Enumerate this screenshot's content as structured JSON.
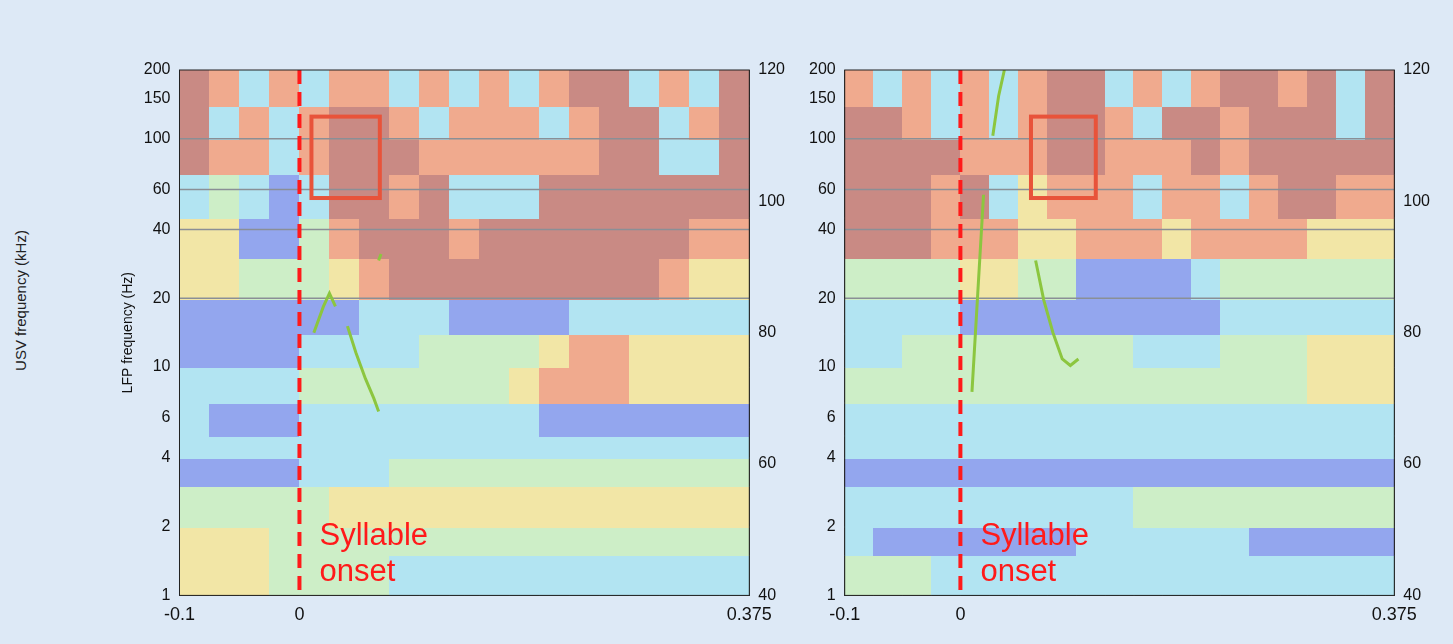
{
  "side_text": "USV frequency (kHz)",
  "chart_data": [
    {
      "type": "heatmap",
      "ylabel": "LFP frequency (Hz)",
      "xlim": [
        -0.1,
        0.375
      ],
      "xticks": [
        -0.1,
        0,
        0.375
      ],
      "ylim": [
        1,
        200
      ],
      "yticks": [
        1,
        2,
        4,
        6,
        10,
        20,
        40,
        60,
        100,
        150,
        200
      ],
      "log": "y",
      "y2lim": [
        40,
        120
      ],
      "y2ticks": [
        40,
        60,
        80,
        100,
        120
      ],
      "grid": false,
      "cells": {
        "x_edges": [
          -0.1,
          -0.075,
          -0.05,
          -0.025,
          0,
          0.025,
          0.05,
          0.075,
          0.1,
          0.125,
          0.15,
          0.175,
          0.2,
          0.225,
          0.25,
          0.275,
          0.3,
          0.325,
          0.35,
          0.375
        ],
        "y_edges": [
          1,
          1.5,
          2,
          3,
          4,
          5,
          7,
          10,
          14,
          20,
          30,
          45,
          70,
          100,
          140,
          200
        ],
        "zlim": [
          0,
          5
        ],
        "values": [
          [
            3,
            3,
            3,
            2,
            2,
            2,
            2,
            1,
            1,
            1,
            1,
            1,
            1,
            1,
            1,
            1,
            1,
            1,
            1
          ],
          [
            3,
            3,
            3,
            2,
            2,
            2,
            2,
            2,
            2,
            2,
            2,
            2,
            2,
            2,
            2,
            2,
            2,
            2,
            2
          ],
          [
            2,
            2,
            2,
            2,
            2,
            3,
            3,
            3,
            3,
            3,
            3,
            3,
            3,
            3,
            3,
            3,
            3,
            3,
            3
          ],
          [
            0,
            0,
            0,
            0,
            1,
            1,
            1,
            2,
            2,
            2,
            2,
            2,
            2,
            2,
            2,
            2,
            2,
            2,
            2
          ],
          [
            1,
            1,
            1,
            1,
            1,
            1,
            1,
            1,
            1,
            1,
            1,
            1,
            1,
            1,
            1,
            1,
            1,
            1,
            1
          ],
          [
            1,
            0,
            0,
            0,
            1,
            1,
            1,
            1,
            1,
            1,
            1,
            1,
            0,
            0,
            0,
            0,
            0,
            0,
            0
          ],
          [
            1,
            1,
            1,
            1,
            2,
            2,
            2,
            2,
            2,
            2,
            2,
            3,
            4,
            4,
            4,
            3,
            3,
            3,
            3
          ],
          [
            0,
            0,
            0,
            0,
            1,
            1,
            1,
            1,
            2,
            2,
            2,
            2,
            3,
            4,
            4,
            3,
            3,
            3,
            3
          ],
          [
            0,
            0,
            0,
            0,
            0,
            0,
            1,
            1,
            1,
            0,
            0,
            0,
            0,
            1,
            1,
            1,
            1,
            1,
            1
          ],
          [
            3,
            3,
            2,
            2,
            2,
            3,
            4,
            5,
            5,
            5,
            5,
            5,
            5,
            5,
            5,
            5,
            4,
            3,
            3
          ],
          [
            3,
            3,
            0,
            0,
            2,
            4,
            5,
            5,
            5,
            4,
            5,
            5,
            5,
            5,
            5,
            5,
            5,
            4,
            4
          ],
          [
            1,
            2,
            1,
            0,
            1,
            5,
            5,
            4,
            5,
            1,
            1,
            1,
            5,
            5,
            5,
            5,
            5,
            5,
            5
          ],
          [
            5,
            4,
            4,
            1,
            4,
            5,
            5,
            5,
            4,
            4,
            4,
            4,
            4,
            4,
            5,
            5,
            1,
            1,
            5
          ],
          [
            5,
            1,
            4,
            1,
            4,
            5,
            5,
            4,
            1,
            4,
            4,
            4,
            1,
            4,
            5,
            5,
            1,
            4,
            5
          ],
          [
            5,
            4,
            1,
            4,
            1,
            4,
            4,
            1,
            4,
            1,
            4,
            1,
            4,
            5,
            5,
            1,
            4,
            1,
            5
          ]
        ]
      },
      "hlines": [
        20,
        40,
        60,
        100
      ],
      "boxes": [
        {
          "x": [
            0.01,
            0.067
          ],
          "y": [
            55,
            125
          ]
        }
      ],
      "vline": {
        "x": 0,
        "label": "Syllable onset"
      },
      "series": [
        {
          "type": "line",
          "axis": "y2",
          "color": "#8cc63f",
          "x": [
            0.012,
            0.02,
            0.025,
            0.03,
            0.035,
            0.04,
            0.047,
            0.055,
            0.062,
            0.066,
            0.067,
            0.066,
            0.068
          ],
          "values": [
            80,
            84,
            86,
            84,
            null,
            81,
            77,
            73,
            70,
            68,
            null,
            91,
            92
          ]
        }
      ]
    },
    {
      "type": "heatmap",
      "xlim": [
        -0.1,
        0.375
      ],
      "xticks": [
        -0.1,
        0,
        0.375
      ],
      "ylim": [
        1,
        200
      ],
      "yticks": [
        1,
        2,
        4,
        6,
        10,
        20,
        40,
        60,
        100,
        150,
        200
      ],
      "log": "y",
      "y2lim": [
        40,
        120
      ],
      "y2ticks": [
        40,
        60,
        80,
        100,
        120
      ],
      "grid": false,
      "cells": {
        "x_edges": [
          -0.1,
          -0.075,
          -0.05,
          -0.025,
          0,
          0.025,
          0.05,
          0.075,
          0.1,
          0.125,
          0.15,
          0.175,
          0.2,
          0.225,
          0.25,
          0.275,
          0.3,
          0.325,
          0.35,
          0.375
        ],
        "y_edges": [
          1,
          1.5,
          2,
          3,
          4,
          5,
          7,
          10,
          14,
          20,
          30,
          45,
          70,
          100,
          140,
          200
        ],
        "zlim": [
          0,
          5
        ],
        "values": [
          [
            2,
            2,
            2,
            1,
            1,
            1,
            1,
            1,
            1,
            1,
            1,
            1,
            1,
            1,
            1,
            1,
            1,
            1,
            1
          ],
          [
            1,
            0,
            0,
            0,
            0,
            0,
            0,
            0,
            1,
            1,
            1,
            1,
            1,
            1,
            0,
            0,
            0,
            0,
            0
          ],
          [
            1,
            1,
            1,
            1,
            1,
            1,
            1,
            1,
            1,
            1,
            2,
            2,
            2,
            2,
            2,
            2,
            2,
            2,
            2
          ],
          [
            0,
            0,
            0,
            0,
            0,
            0,
            0,
            0,
            0,
            0,
            0,
            0,
            0,
            0,
            0,
            0,
            0,
            0,
            0
          ],
          [
            1,
            1,
            1,
            1,
            1,
            1,
            1,
            1,
            1,
            1,
            1,
            1,
            1,
            1,
            1,
            1,
            1,
            1,
            1
          ],
          [
            1,
            1,
            1,
            1,
            1,
            1,
            1,
            1,
            1,
            1,
            1,
            1,
            1,
            1,
            1,
            1,
            1,
            1,
            1
          ],
          [
            2,
            2,
            2,
            2,
            2,
            2,
            2,
            2,
            2,
            2,
            2,
            2,
            2,
            2,
            2,
            2,
            3,
            3,
            3
          ],
          [
            1,
            1,
            2,
            2,
            2,
            2,
            2,
            2,
            2,
            2,
            1,
            1,
            1,
            2,
            2,
            2,
            3,
            3,
            3
          ],
          [
            1,
            1,
            1,
            1,
            0,
            0,
            0,
            0,
            0,
            0,
            0,
            0,
            0,
            1,
            1,
            1,
            1,
            1,
            1
          ],
          [
            2,
            2,
            2,
            2,
            3,
            3,
            2,
            2,
            0,
            0,
            0,
            0,
            1,
            2,
            2,
            2,
            2,
            2,
            2
          ],
          [
            5,
            5,
            5,
            4,
            4,
            4,
            3,
            3,
            4,
            4,
            4,
            3,
            4,
            4,
            4,
            4,
            3,
            3,
            3
          ],
          [
            5,
            5,
            5,
            4,
            5,
            1,
            3,
            4,
            4,
            4,
            1,
            4,
            4,
            1,
            4,
            5,
            5,
            4,
            4
          ],
          [
            5,
            5,
            5,
            5,
            4,
            4,
            4,
            5,
            5,
            4,
            4,
            4,
            5,
            4,
            5,
            5,
            5,
            5,
            5
          ],
          [
            5,
            5,
            4,
            1,
            4,
            1,
            4,
            5,
            5,
            4,
            1,
            5,
            5,
            4,
            5,
            5,
            5,
            1,
            5
          ],
          [
            4,
            1,
            4,
            1,
            4,
            1,
            4,
            5,
            5,
            1,
            4,
            1,
            4,
            5,
            5,
            4,
            5,
            1,
            5
          ]
        ]
      },
      "hlines": [
        20,
        40,
        60,
        100
      ],
      "boxes": [
        {
          "x": [
            0.061,
            0.117
          ],
          "y": [
            55,
            125
          ]
        }
      ],
      "vline": {
        "x": 0,
        "label": "Syllable onset"
      },
      "series": [
        {
          "type": "line",
          "axis": "y2",
          "color": "#8cc63f",
          "x": [
            0.01,
            0.015,
            0.02,
            0.025,
            0.028,
            0.033,
            0.038,
            0.05,
            0.065,
            0.072,
            0.08,
            0.088,
            0.095,
            0.102
          ],
          "values": [
            71,
            86,
            101,
            null,
            110,
            116,
            120,
            null,
            91,
            85,
            80,
            76,
            75,
            76
          ]
        }
      ]
    }
  ]
}
